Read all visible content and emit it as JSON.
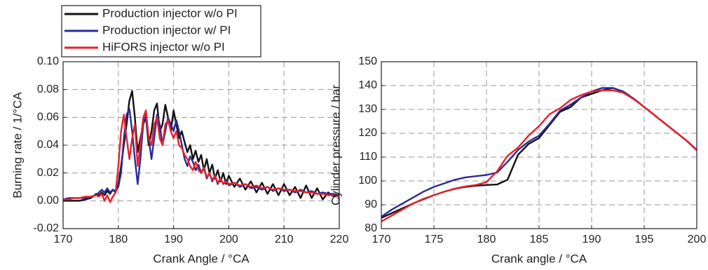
{
  "chart_data": [
    {
      "type": "line",
      "xlabel": "Crank Angle / °CA",
      "ylabel": "Burning rate / 1/°CA",
      "xlim": [
        170,
        220
      ],
      "ylim": [
        -0.02,
        0.1
      ],
      "xticks": [
        170,
        180,
        190,
        200,
        210,
        220
      ],
      "yticks": [
        {
          "value": -0.02,
          "label": "-0.02"
        },
        {
          "value": 0,
          "label": "0.00"
        },
        {
          "value": 0.02,
          "label": "0.02"
        },
        {
          "value": 0.04,
          "label": "0.04"
        },
        {
          "value": 0.06,
          "label": "0.06"
        },
        {
          "value": 0.08,
          "label": "0.08"
        },
        {
          "value": 0.1,
          "label": "0.10"
        }
      ],
      "grid": true,
      "x": [
        170,
        171,
        172,
        173,
        174,
        175,
        176,
        176.5,
        177,
        177.5,
        178,
        178.5,
        179,
        179.5,
        180,
        180.5,
        181,
        181.5,
        182,
        182.5,
        183,
        183.5,
        184,
        184.5,
        185,
        185.5,
        186,
        186.5,
        187,
        187.5,
        188,
        188.5,
        189,
        189.5,
        190,
        190.5,
        191,
        191.5,
        192,
        192.5,
        193,
        193.5,
        194,
        194.5,
        195,
        195.5,
        196,
        196.5,
        197,
        197.5,
        198,
        198.5,
        199,
        199.5,
        200,
        201,
        202,
        203,
        204,
        205,
        206,
        207,
        208,
        209,
        210,
        211,
        212,
        213,
        214,
        215,
        216,
        217,
        218,
        219,
        220
      ],
      "series": [
        {
          "name": "Production injector w/o PI",
          "color": "#111111",
          "values": [
            0,
            0,
            0,
            0,
            0.001,
            0.002,
            0.005,
            0.004,
            0.006,
            0.004,
            0.007,
            0.005,
            0.008,
            0.006,
            0.012,
            0.025,
            0.04,
            0.055,
            0.072,
            0.079,
            0.06,
            0.035,
            0.045,
            0.055,
            0.06,
            0.04,
            0.05,
            0.065,
            0.07,
            0.05,
            0.055,
            0.069,
            0.06,
            0.05,
            0.065,
            0.055,
            0.045,
            0.05,
            0.042,
            0.035,
            0.04,
            0.03,
            0.036,
            0.028,
            0.033,
            0.022,
            0.03,
            0.02,
            0.026,
            0.016,
            0.022,
            0.014,
            0.02,
            0.012,
            0.018,
            0.01,
            0.016,
            0.008,
            0.014,
            0.006,
            0.013,
            0.005,
            0.012,
            0.004,
            0.012,
            0.004,
            0.01,
            0.002,
            0.011,
            0.002,
            0.009,
            0.001,
            0.006,
            0.003,
            0.004
          ]
        },
        {
          "name": "Production injector w/ PI",
          "color": "#2b2b9a",
          "values": [
            0.001,
            0.002,
            0.002,
            0.002,
            0.002,
            0.003,
            0.004,
            0.006,
            0.008,
            0.006,
            0.009,
            0.006,
            0.008,
            0.007,
            0.01,
            0.02,
            0.045,
            0.062,
            0.066,
            0.05,
            0.03,
            0.012,
            0.03,
            0.055,
            0.062,
            0.045,
            0.03,
            0.045,
            0.062,
            0.055,
            0.04,
            0.05,
            0.06,
            0.055,
            0.05,
            0.058,
            0.05,
            0.04,
            0.03,
            0.025,
            0.032,
            0.028,
            0.022,
            0.026,
            0.02,
            0.024,
            0.016,
            0.02,
            0.014,
            0.018,
            0.012,
            0.016,
            0.012,
            0.015,
            0.011,
            0.013,
            0.01,
            0.012,
            0.009,
            0.01,
            0.008,
            0.01,
            0.007,
            0.009,
            0.007,
            0.008,
            0.006,
            0.008,
            0.006,
            0.007,
            0.005,
            0.006,
            0.005,
            0.005,
            0.004
          ]
        },
        {
          "name": "HiFORS injector w/o PI",
          "color": "#e8212a",
          "values": [
            0.001,
            0.001,
            0.002,
            0.002,
            0.003,
            0.003,
            0.004,
            0.003,
            0.005,
            0,
            0.004,
            -0.001,
            0.003,
            0.006,
            0.025,
            0.05,
            0.062,
            0.045,
            0.03,
            0.045,
            0.055,
            0.025,
            0.04,
            0.06,
            0.065,
            0.045,
            0.04,
            0.055,
            0.06,
            0.045,
            0.04,
            0.055,
            0.058,
            0.05,
            0.045,
            0.05,
            0.04,
            0.038,
            0.033,
            0.03,
            0.025,
            0.022,
            0.028,
            0.022,
            0.02,
            0.024,
            0.017,
            0.02,
            0.015,
            0.018,
            0.013,
            0.016,
            0.012,
            0.014,
            0.012,
            0.013,
            0.011,
            0.012,
            0.01,
            0.011,
            0.009,
            0.01,
            0.008,
            0.009,
            0.008,
            0.008,
            0.007,
            0.007,
            0.006,
            0.006,
            0.005,
            0.005,
            0.004,
            0.004,
            0.003
          ]
        }
      ]
    },
    {
      "type": "line",
      "xlabel": "Crank angle / °CA",
      "ylabel": "Cylinder pressure / bar",
      "xlim": [
        170,
        200
      ],
      "ylim": [
        80,
        150
      ],
      "xticks": [
        170,
        175,
        180,
        185,
        190,
        195,
        200
      ],
      "yticks": [
        80,
        90,
        100,
        110,
        120,
        130,
        140,
        150
      ],
      "grid": true,
      "x": [
        170,
        171,
        172,
        173,
        174,
        175,
        176,
        177,
        178,
        179,
        180,
        181,
        182,
        183,
        184,
        185,
        186,
        187,
        188,
        189,
        190,
        191,
        192,
        193,
        194,
        195,
        196,
        197,
        198,
        199,
        200
      ],
      "series": [
        {
          "color": "#111111",
          "values": [
            84.5,
            86.5,
            88.5,
            90.5,
            92.3,
            94,
            95.5,
            96.7,
            97.5,
            98,
            98.3,
            98.5,
            100.5,
            111,
            115.5,
            118,
            123.5,
            129,
            131,
            135,
            136.5,
            138,
            139,
            137.5,
            134.5,
            131,
            127.5,
            124,
            120.5,
            117,
            113
          ]
        },
        {
          "color": "#2b2b9a",
          "values": [
            85,
            88,
            90.5,
            93,
            95.5,
            97.5,
            99,
            100.5,
            101.5,
            102,
            102.5,
            103.5,
            108,
            113,
            116.5,
            119,
            124,
            129.5,
            132,
            135,
            137.5,
            139,
            139,
            137.5,
            134.5,
            131,
            127.5,
            124,
            120.5,
            117,
            113
          ]
        },
        {
          "color": "#e8212a",
          "values": [
            83,
            85.5,
            88,
            90.5,
            92.5,
            94,
            95.5,
            96.8,
            97.7,
            98.3,
            99.5,
            104,
            110.5,
            114,
            119,
            123,
            128,
            130.5,
            134,
            136,
            137.5,
            138,
            138,
            137,
            134.3,
            131,
            127.5,
            124,
            120.5,
            117,
            112.8
          ]
        }
      ]
    }
  ]
}
